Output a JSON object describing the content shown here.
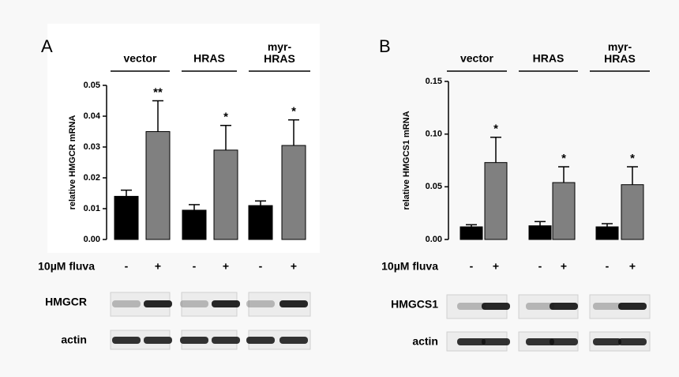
{
  "chart_data": [
    {
      "type": "bar",
      "panel": "A",
      "y_label": "relative HMGCR mRNA",
      "groups": [
        "vector",
        "HRAS",
        "myr-\nHRAS"
      ],
      "categories": [
        "-",
        "+",
        "-",
        "+",
        "-",
        "+"
      ],
      "values": [
        0.014,
        0.035,
        0.0095,
        0.029,
        0.011,
        0.0305
      ],
      "errors": [
        0.002,
        0.01,
        0.0018,
        0.008,
        0.0015,
        0.0083
      ],
      "annotations": [
        null,
        "**",
        null,
        "*",
        null,
        "*"
      ],
      "colors": [
        "#000000",
        "#808080",
        "#000000",
        "#808080",
        "#000000",
        "#808080"
      ],
      "ylim": [
        0,
        0.05
      ],
      "yticks": [
        {
          "value": 0,
          "label": "0.00"
        },
        0.01,
        0.02,
        0.03,
        0.04,
        0.05
      ],
      "treatment_label": "10µM fluva",
      "blot_labels": [
        "HMGCR",
        "actin"
      ]
    },
    {
      "type": "bar",
      "panel": "B",
      "y_label": "relative HMGCS1 mRNA",
      "groups": [
        "vector",
        "HRAS",
        "myr-\nHRAS"
      ],
      "categories": [
        "-",
        "+",
        "-",
        "+",
        "-",
        "+"
      ],
      "values": [
        0.012,
        0.073,
        0.013,
        0.054,
        0.012,
        0.052
      ],
      "errors": [
        0.002,
        0.024,
        0.004,
        0.015,
        0.003,
        0.017
      ],
      "annotations": [
        null,
        "*",
        null,
        "*",
        null,
        "*"
      ],
      "colors": [
        "#000000",
        "#808080",
        "#000000",
        "#808080",
        "#000000",
        "#808080"
      ],
      "ylim": [
        0,
        0.15
      ],
      "yticks": [
        {
          "value": 0,
          "label": "0.00"
        },
        0.05,
        {
          "value": 0.1,
          "label": "0.10"
        },
        0.15
      ],
      "treatment_label": "10µM fluva",
      "blot_labels": [
        "HMGCS1",
        "actin"
      ]
    }
  ]
}
